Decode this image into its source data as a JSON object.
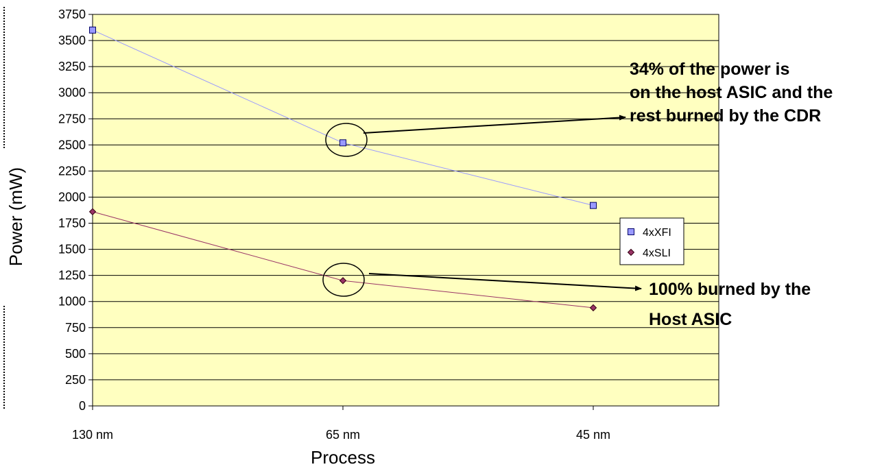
{
  "chart_data": {
    "type": "line",
    "title": "",
    "xlabel": "Process",
    "ylabel": "Power (mW)",
    "categories": [
      "130 nm",
      "65 nm",
      "45 nm"
    ],
    "ylim": [
      0,
      3750
    ],
    "ytick_step": 250,
    "grid": true,
    "plot_background": "#ffffc0",
    "legend": {
      "position": "right"
    },
    "series": [
      {
        "name": "4xXFI",
        "values": [
          3600,
          2520,
          1920
        ],
        "color": "#9999ff",
        "line_color": "#9999ff",
        "marker": "square"
      },
      {
        "name": "4xSLI",
        "values": [
          1860,
          1200,
          940
        ],
        "color": "#993366",
        "line_color": "#993366",
        "marker": "diamond"
      }
    ],
    "annotations": [
      {
        "series": 0,
        "category": 1,
        "lines": [
          "34% of the power is",
          "on the host ASIC and the",
          "rest burned by the CDR"
        ]
      },
      {
        "series": 1,
        "category": 1,
        "lines": [
          "100% burned by the",
          "Host ASIC"
        ]
      }
    ]
  }
}
